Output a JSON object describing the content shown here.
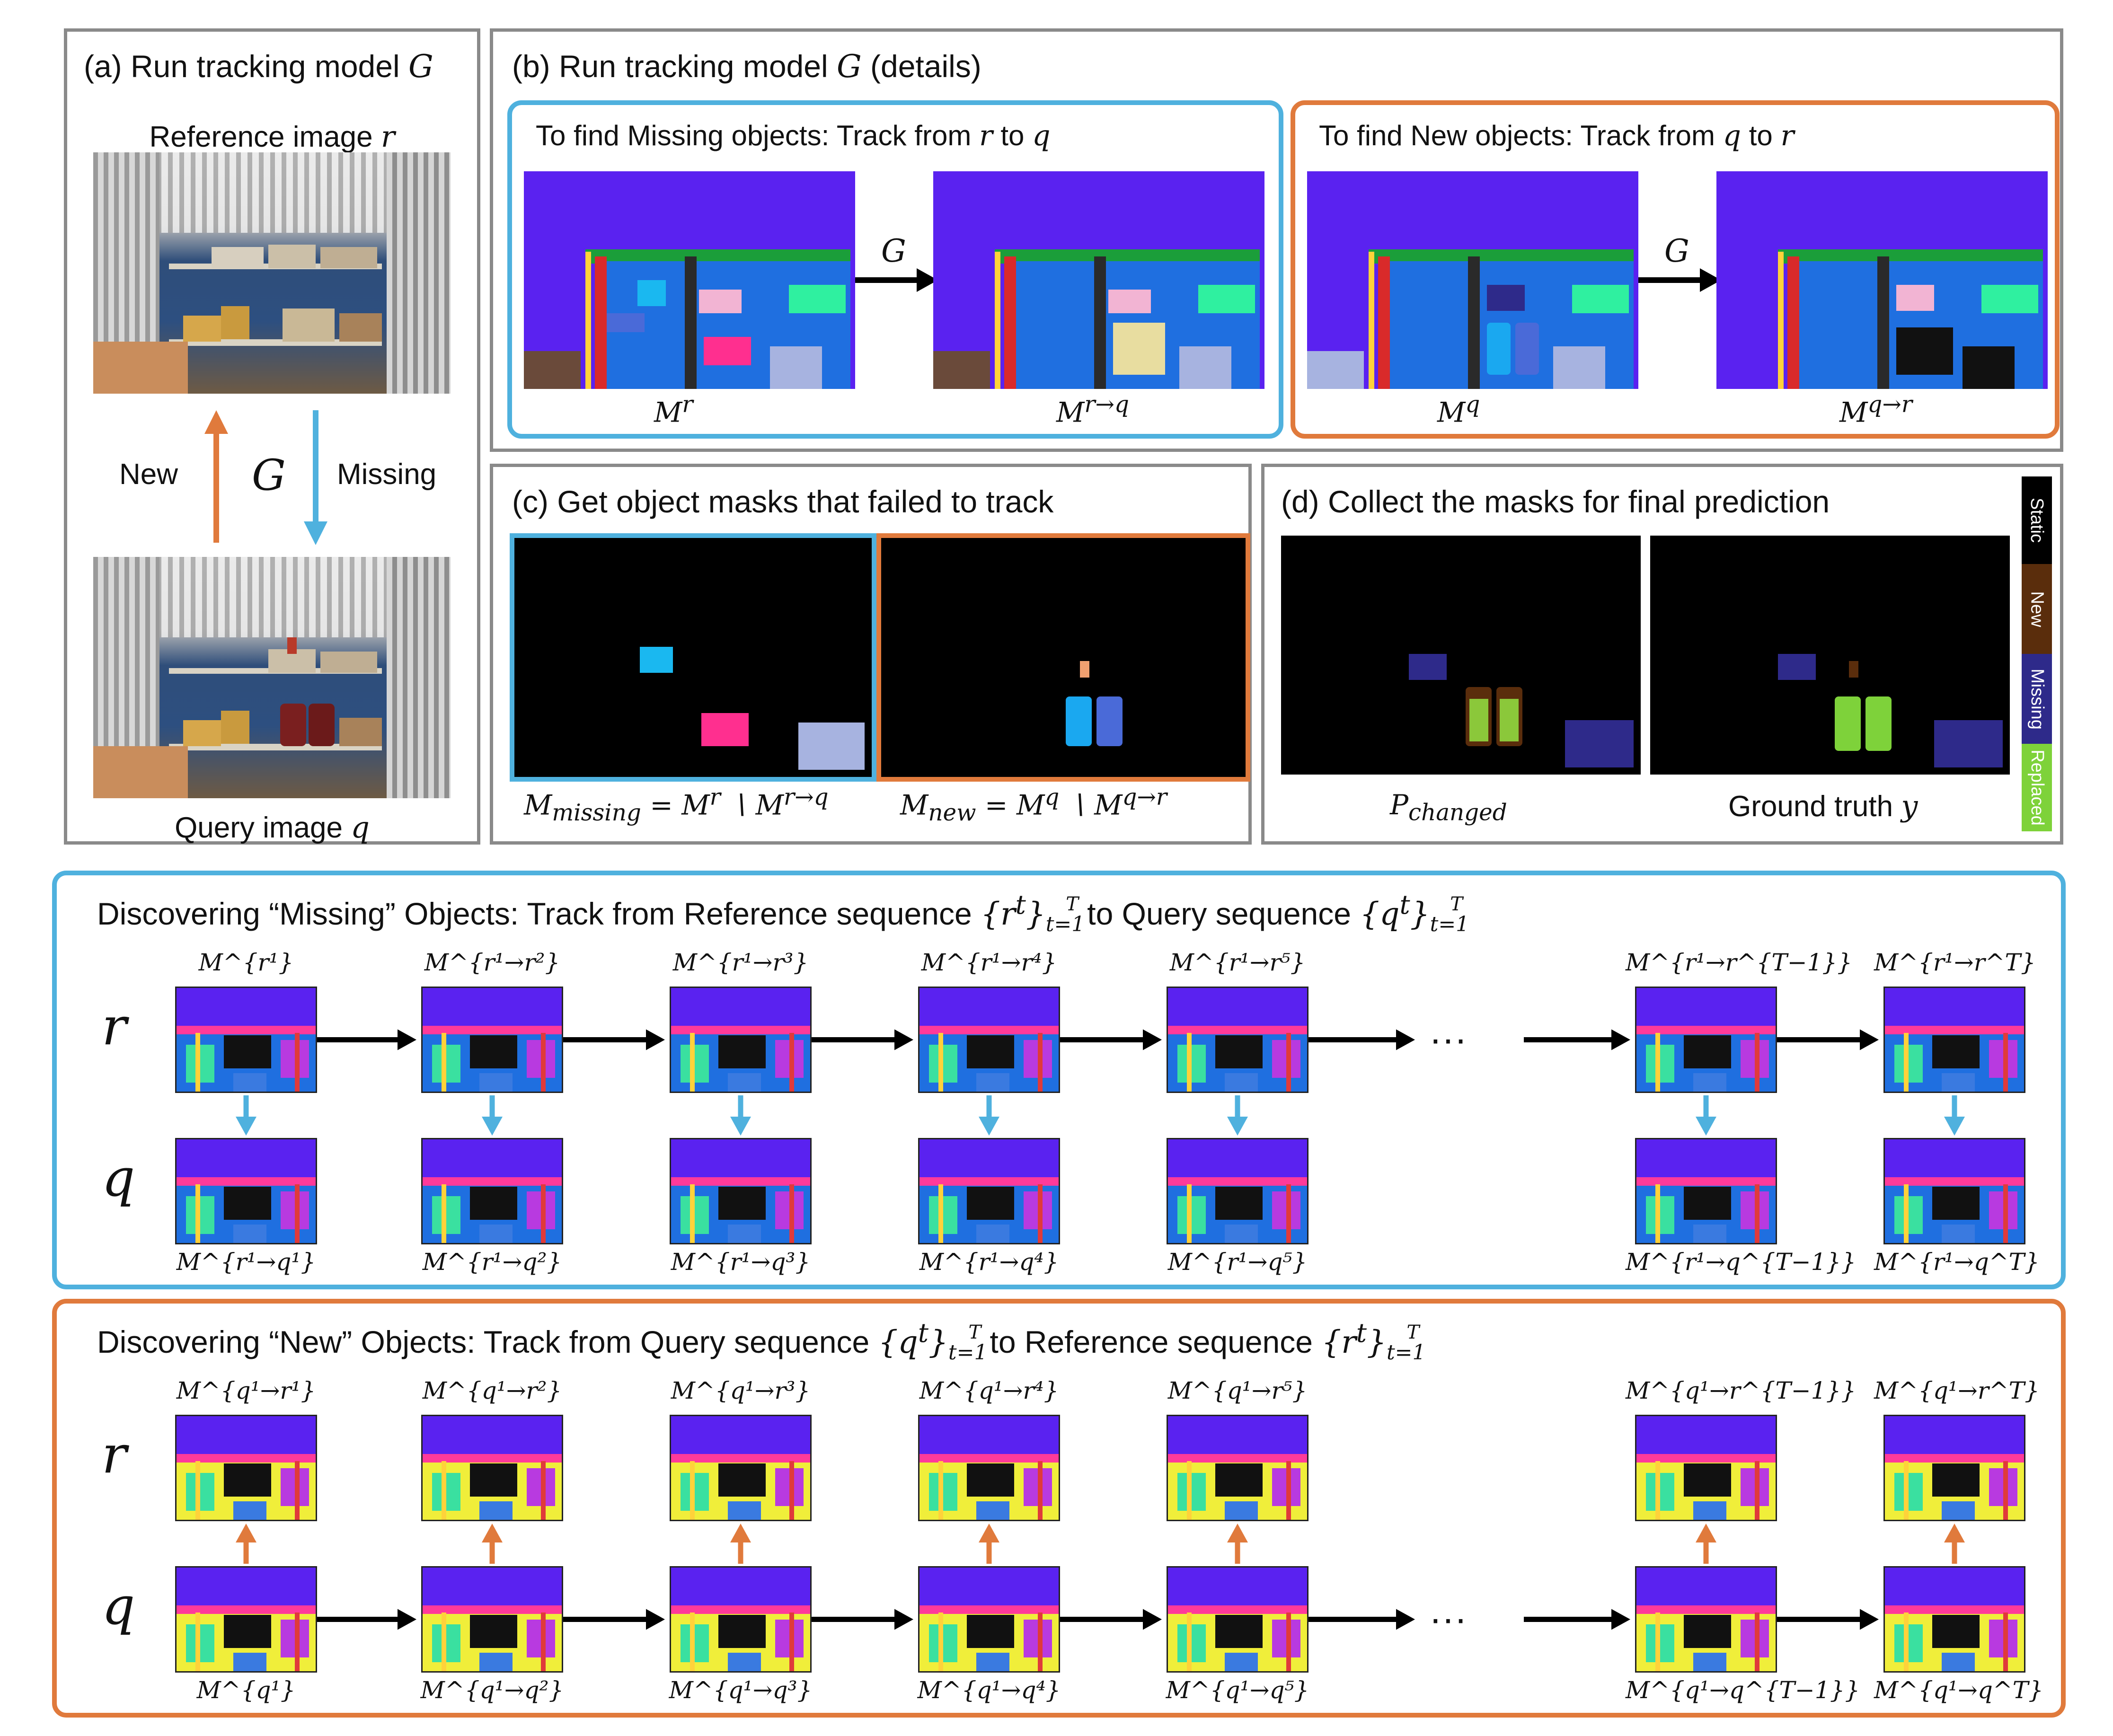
{
  "panel_a": {
    "title": "(a) Run tracking model",
    "title_var": "G",
    "reference_label": "Reference image",
    "reference_var": "r",
    "query_label": "Query image",
    "query_var": "q",
    "new_label": "New",
    "missing_label": "Missing",
    "model_label": "G"
  },
  "panel_b": {
    "title": "(b) Run tracking model",
    "title_var": "G",
    "title_suffix": "(details)",
    "missing_title": "To find Missing objects: Track from",
    "missing_from": "r",
    "missing_to_word": "to",
    "missing_to": "q",
    "new_title": "To find New objects: Track from",
    "new_from": "q",
    "new_to_word": "to",
    "new_to": "r",
    "arrow_label": "G",
    "caption_mr": "M",
    "caption_mr_sup": "r",
    "caption_mrq": "M",
    "caption_mrq_sup": "r→q",
    "caption_mq": "M",
    "caption_mq_sup": "q",
    "caption_mqr": "M",
    "caption_mqr_sup": "q→r"
  },
  "panel_c": {
    "title": "(c) Get object masks that failed to track",
    "formula_missing": "M",
    "formula_missing_sub": "missing",
    "formula_missing_rhs": "= M",
    "formula_missing_rhs_sup": "r",
    "formula_missing_rhs2": "∖ M",
    "formula_missing_rhs2_sup": "r→q",
    "formula_new": "M",
    "formula_new_sub": "new",
    "formula_new_rhs": "= M",
    "formula_new_rhs_sup": "q",
    "formula_new_rhs2": "∖ M",
    "formula_new_rhs2_sup": "q→r"
  },
  "panel_d": {
    "title": "(d) Collect the masks for final prediction",
    "pred_label": "P",
    "pred_sub": "changed",
    "gt_label": "Ground truth",
    "gt_var": "y",
    "legend": [
      {
        "label": "Static",
        "color": "#000000"
      },
      {
        "label": "New",
        "color": "#5a2d0c"
      },
      {
        "label": "Missing",
        "color": "#2e2a8a"
      },
      {
        "label": "Replaced",
        "color": "#7ed23a"
      }
    ]
  },
  "missing_section": {
    "title_pre": "Discovering “Missing” Objects: Track from Reference sequence",
    "title_set1": "{r",
    "title_mid": "to Query sequence",
    "title_set2": "{q",
    "row_r": "r",
    "row_q": "q",
    "ellipsis": "···",
    "top_captions": [
      "M^{r¹}",
      "M^{r¹→r²}",
      "M^{r¹→r³}",
      "M^{r¹→r⁴}",
      "M^{r¹→r⁵}",
      "M^{r¹→r^{T−1}}",
      "M^{r¹→r^T}"
    ],
    "bottom_captions": [
      "M^{r¹→q¹}",
      "M^{r¹→q²}",
      "M^{r¹→q³}",
      "M^{r¹→q⁴}",
      "M^{r¹→q⁵}",
      "M^{r¹→q^{T−1}}",
      "M^{r¹→q^T}"
    ]
  },
  "new_section": {
    "title_pre": "Discovering “New” Objects: Track from Query sequence",
    "title_set1": "{q",
    "title_mid": "to Reference sequence",
    "title_set2": "{r",
    "row_r": "r",
    "row_q": "q",
    "ellipsis": "···",
    "top_captions": [
      "M^{q¹→r¹}",
      "M^{q¹→r²}",
      "M^{q¹→r³}",
      "M^{q¹→r⁴}",
      "M^{q¹→r⁵}",
      "M^{q¹→r^{T−1}}",
      "M^{q¹→r^T}"
    ],
    "bottom_captions": [
      "M^{q¹}",
      "M^{q¹→q²}",
      "M^{q¹→q³}",
      "M^{q¹→q⁴}",
      "M^{q¹→q⁵}",
      "M^{q¹→q^{T−1}}",
      "M^{q¹→q^T}"
    ]
  },
  "colors": {
    "blue_accent": "#4fb1de",
    "orange_accent": "#e07a3c",
    "panel_border": "#8a8a8a",
    "seg_background": "#5a22f0"
  }
}
